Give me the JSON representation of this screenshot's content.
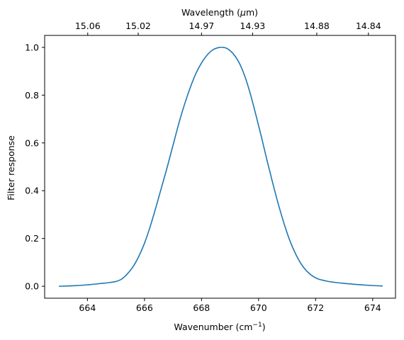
{
  "chart_data": {
    "type": "line",
    "title": "",
    "xlabel": "Wavenumber (cm",
    "xlabel_sup": "−1",
    "xlabel_end": ")",
    "ylabel": "Filter response",
    "top_xlabel_prefix": "Wavelength (",
    "top_xlabel_mu": "μ",
    "top_xlabel_suffix": "m)",
    "xlim": [
      662.5,
      674.8
    ],
    "ylim": [
      -0.05,
      1.05
    ],
    "grid": false,
    "legend": "none",
    "line_color": "#1f77b4",
    "x_ticks": [
      "664",
      "666",
      "668",
      "670",
      "672",
      "674"
    ],
    "y_ticks": [
      "0.0",
      "0.2",
      "0.4",
      "0.6",
      "0.8",
      "1.0"
    ],
    "top_ticks": [
      {
        "label": "15.06",
        "wavenumber": 664.01
      },
      {
        "label": "15.02",
        "wavenumber": 665.78
      },
      {
        "label": "14.97",
        "wavenumber": 668.0
      },
      {
        "label": "14.93",
        "wavenumber": 669.79
      },
      {
        "label": "14.88",
        "wavenumber": 672.04
      },
      {
        "label": "14.84",
        "wavenumber": 673.85
      }
    ],
    "series": [
      {
        "x": [
          663.0,
          663.5,
          664.0,
          664.5,
          664.8,
          665.0,
          665.2,
          665.4,
          665.6,
          665.8,
          666.0,
          666.2,
          666.4,
          666.6,
          666.8,
          667.0,
          667.2,
          667.4,
          667.6,
          667.8,
          668.0,
          668.2,
          668.4,
          668.6,
          668.75,
          668.9,
          669.1,
          669.3,
          669.5,
          669.7,
          669.9,
          670.1,
          670.3,
          670.5,
          670.7,
          670.9,
          671.1,
          671.3,
          671.5,
          671.7,
          671.9,
          672.1,
          672.3,
          672.5,
          673.0,
          673.5,
          674.0,
          674.35
        ],
        "y": [
          0.0,
          0.002,
          0.006,
          0.012,
          0.016,
          0.02,
          0.03,
          0.052,
          0.082,
          0.125,
          0.18,
          0.25,
          0.33,
          0.415,
          0.5,
          0.59,
          0.68,
          0.76,
          0.83,
          0.89,
          0.935,
          0.968,
          0.99,
          0.999,
          1.0,
          0.995,
          0.975,
          0.94,
          0.885,
          0.81,
          0.72,
          0.625,
          0.525,
          0.43,
          0.34,
          0.26,
          0.19,
          0.135,
          0.092,
          0.062,
          0.042,
          0.03,
          0.024,
          0.019,
          0.012,
          0.007,
          0.003,
          0.001
        ]
      }
    ]
  }
}
